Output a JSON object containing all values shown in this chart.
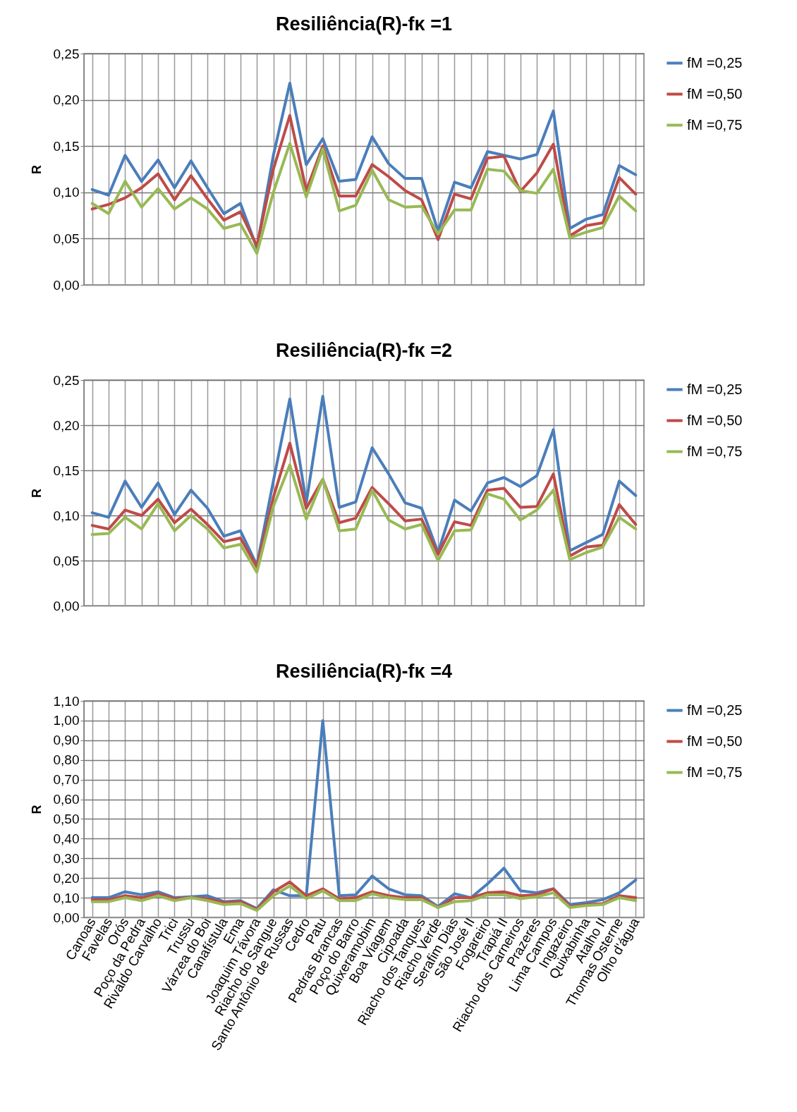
{
  "chart_data": [
    {
      "type": "line",
      "title": "Resiliência(R)-fκ =1",
      "ylabel": "R",
      "tick_labels": "y",
      "grid": true,
      "legend": "right",
      "categories": [
        null,
        null,
        null,
        null,
        null,
        null,
        null,
        null,
        null,
        null,
        null,
        null,
        null,
        null,
        null,
        null,
        null,
        null,
        null,
        null,
        null,
        null,
        null,
        null,
        null,
        null,
        null,
        null,
        null,
        null,
        null,
        null,
        null,
        null
      ],
      "ylim": [
        0,
        0.25
      ],
      "yticks": [
        {
          "value": 0,
          "label": "0,00"
        },
        {
          "value": 0.05,
          "label": "0,05"
        },
        {
          "value": 0.1,
          "label": "0,10"
        },
        {
          "value": 0.15,
          "label": "0,15"
        },
        {
          "value": 0.2,
          "label": "0,20"
        },
        {
          "value": 0.25,
          "label": "0,25"
        }
      ],
      "series": [
        {
          "name": "fM =0,25",
          "color": "#4a7ebb",
          "values": [
            0.103,
            0.097,
            0.14,
            0.112,
            0.135,
            0.105,
            0.134,
            0.105,
            0.077,
            0.088,
            0.04,
            0.14,
            0.218,
            0.13,
            0.158,
            0.112,
            0.114,
            0.16,
            0.131,
            0.115,
            0.115,
            0.058,
            0.111,
            0.105,
            0.144,
            0.14,
            0.136,
            0.141,
            0.188,
            0.061,
            0.071,
            0.076,
            0.129,
            0.119
          ]
        },
        {
          "name": "fM =0,50",
          "color": "#be4b48",
          "values": [
            0.082,
            0.087,
            0.094,
            0.105,
            0.12,
            0.092,
            0.118,
            0.093,
            0.07,
            0.079,
            0.042,
            0.125,
            0.183,
            0.102,
            0.15,
            0.096,
            0.096,
            0.13,
            0.117,
            0.102,
            0.092,
            0.049,
            0.098,
            0.093,
            0.137,
            0.139,
            0.101,
            0.121,
            0.152,
            0.053,
            0.064,
            0.067,
            0.116,
            0.098
          ]
        },
        {
          "name": "fM =0,75",
          "color": "#98b954",
          "values": [
            0.088,
            0.077,
            0.112,
            0.084,
            0.104,
            0.082,
            0.094,
            0.082,
            0.061,
            0.066,
            0.034,
            0.1,
            0.153,
            0.095,
            0.147,
            0.08,
            0.086,
            0.124,
            0.092,
            0.084,
            0.085,
            0.055,
            0.081,
            0.081,
            0.125,
            0.123,
            0.102,
            0.099,
            0.125,
            0.051,
            0.057,
            0.062,
            0.096,
            0.08
          ]
        }
      ]
    },
    {
      "type": "line",
      "title": "Resiliência(R)-fκ =2",
      "ylabel": "R",
      "tick_labels": "y",
      "grid": true,
      "legend": "right",
      "categories": [
        null,
        null,
        null,
        null,
        null,
        null,
        null,
        null,
        null,
        null,
        null,
        null,
        null,
        null,
        null,
        null,
        null,
        null,
        null,
        null,
        null,
        null,
        null,
        null,
        null,
        null,
        null,
        null,
        null,
        null,
        null,
        null,
        null,
        null
      ],
      "ylim": [
        0,
        0.25
      ],
      "yticks": [
        {
          "value": 0,
          "label": "0,00"
        },
        {
          "value": 0.05,
          "label": "0,05"
        },
        {
          "value": 0.1,
          "label": "0,10"
        },
        {
          "value": 0.15,
          "label": "0,15"
        },
        {
          "value": 0.2,
          "label": "0,20"
        },
        {
          "value": 0.25,
          "label": "0,25"
        }
      ],
      "series": [
        {
          "name": "fM =0,25",
          "color": "#4a7ebb",
          "values": [
            0.103,
            0.098,
            0.138,
            0.109,
            0.136,
            0.101,
            0.128,
            0.108,
            0.077,
            0.083,
            0.045,
            0.138,
            0.229,
            0.114,
            0.232,
            0.109,
            0.115,
            0.175,
            0.146,
            0.114,
            0.108,
            0.059,
            0.117,
            0.105,
            0.136,
            0.142,
            0.132,
            0.144,
            0.195,
            0.061,
            0.07,
            0.079,
            0.138,
            0.122
          ]
        },
        {
          "name": "fM =0,50",
          "color": "#be4b48",
          "values": [
            0.089,
            0.085,
            0.106,
            0.1,
            0.118,
            0.092,
            0.107,
            0.09,
            0.071,
            0.075,
            0.043,
            0.12,
            0.18,
            0.108,
            0.14,
            0.092,
            0.097,
            0.131,
            0.113,
            0.094,
            0.096,
            0.057,
            0.093,
            0.089,
            0.128,
            0.13,
            0.109,
            0.11,
            0.146,
            0.055,
            0.065,
            0.067,
            0.112,
            0.09
          ]
        },
        {
          "name": "fM =0,75",
          "color": "#98b954",
          "values": [
            0.079,
            0.08,
            0.098,
            0.085,
            0.113,
            0.083,
            0.1,
            0.085,
            0.064,
            0.068,
            0.037,
            0.11,
            0.156,
            0.096,
            0.14,
            0.083,
            0.085,
            0.128,
            0.095,
            0.085,
            0.09,
            0.05,
            0.083,
            0.084,
            0.124,
            0.118,
            0.095,
            0.106,
            0.128,
            0.051,
            0.059,
            0.065,
            0.098,
            0.085
          ]
        }
      ]
    },
    {
      "type": "line",
      "title": "Resiliência(R)-fκ =4",
      "ylabel": "R",
      "grid": true,
      "legend": "right",
      "categories": [
        "Canoas",
        "Favelas",
        "Orós",
        "Poço da Pedra",
        "Rivaldo Carvalho",
        "Trici",
        "Trussu",
        "Várzea do Boi",
        "Canafístula",
        "Ema",
        "Joaquim Távora",
        "Riacho do Sangue",
        "Santo Antônio de Russas",
        "Cedro",
        "Patu",
        "Pedras Brancas",
        "Poço do Barro",
        "Quixeramobim",
        "Boa Viagem",
        "Cipoada",
        "Riacho dos Tanques",
        "Riacho Verde",
        "Serafim Dias",
        "São José II",
        "Fogareiro",
        "Trapiá II",
        "Riacho dos Carneiros",
        "Prazeres",
        "Lima Campos",
        "Ingazeiro",
        "Quixabinha",
        "Atalho II",
        "Thomas Osterne",
        "Olho d'água"
      ],
      "ylim": [
        0,
        1.1
      ],
      "yticks": [
        {
          "value": 0,
          "label": "0,00"
        },
        {
          "value": 0.1,
          "label": "0,10"
        },
        {
          "value": 0.2,
          "label": "0,20"
        },
        {
          "value": 0.3,
          "label": "0,30"
        },
        {
          "value": 0.4,
          "label": "0,40"
        },
        {
          "value": 0.5,
          "label": "0,50"
        },
        {
          "value": 0.6,
          "label": "0,60"
        },
        {
          "value": 0.7,
          "label": "0,70"
        },
        {
          "value": 0.8,
          "label": "0,80"
        },
        {
          "value": 0.9,
          "label": "0,90"
        },
        {
          "value": 1,
          "label": "1,00"
        },
        {
          "value": 1.1,
          "label": "1,10"
        }
      ],
      "series": [
        {
          "name": "fM =0,25",
          "color": "#4a7ebb",
          "values": [
            0.1,
            0.1,
            0.13,
            0.115,
            0.13,
            0.1,
            0.105,
            0.11,
            0.08,
            0.085,
            0.045,
            0.14,
            0.11,
            0.11,
            1.0,
            0.11,
            0.115,
            0.21,
            0.145,
            0.115,
            0.11,
            0.055,
            0.12,
            0.1,
            0.17,
            0.25,
            0.135,
            0.125,
            0.145,
            0.065,
            0.075,
            0.09,
            0.125,
            0.19
          ]
        },
        {
          "name": "fM =0,50",
          "color": "#be4b48",
          "values": [
            0.09,
            0.09,
            0.11,
            0.1,
            0.12,
            0.095,
            0.1,
            0.095,
            0.075,
            0.08,
            0.04,
            0.13,
            0.18,
            0.11,
            0.145,
            0.095,
            0.1,
            0.13,
            0.11,
            0.1,
            0.1,
            0.05,
            0.1,
            0.1,
            0.125,
            0.13,
            0.11,
            0.115,
            0.145,
            0.055,
            0.065,
            0.07,
            0.11,
            0.1
          ]
        },
        {
          "name": "fM =0,75",
          "color": "#98b954",
          "values": [
            0.08,
            0.08,
            0.1,
            0.085,
            0.11,
            0.085,
            0.1,
            0.085,
            0.065,
            0.07,
            0.035,
            0.11,
            0.16,
            0.095,
            0.135,
            0.085,
            0.085,
            0.12,
            0.1,
            0.09,
            0.09,
            0.05,
            0.08,
            0.085,
            0.115,
            0.115,
            0.095,
            0.105,
            0.125,
            0.05,
            0.06,
            0.065,
            0.1,
            0.085
          ]
        }
      ]
    }
  ]
}
